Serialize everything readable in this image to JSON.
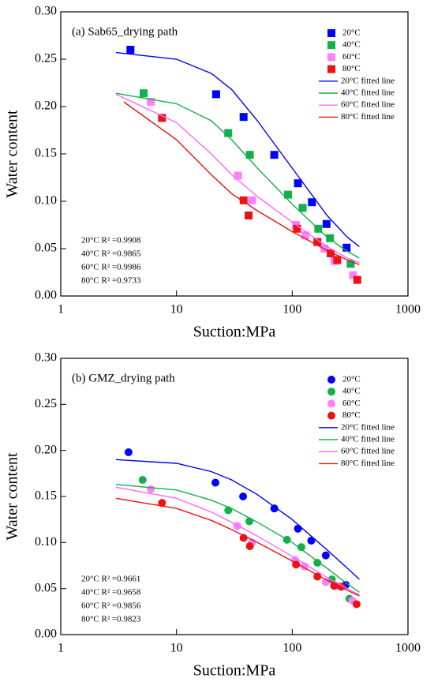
{
  "chart_data": [
    {
      "type": "scatter",
      "title": "(a) Sab65_drying path",
      "xlabel": "Suction:MPa",
      "ylabel": "Water content",
      "xscale": "log",
      "xlim": [
        1,
        1000
      ],
      "xticks": [
        1,
        10,
        100,
        1000
      ],
      "ylim": [
        0,
        0.3
      ],
      "yticks": [
        {
          "value": 0,
          "label": "0.00"
        },
        {
          "value": 0.05,
          "label": "0.05"
        },
        {
          "value": 0.1,
          "label": "0.10"
        },
        {
          "value": 0.15,
          "label": "0.15"
        },
        {
          "value": 0.2,
          "label": "0.20"
        },
        {
          "value": 0.25,
          "label": "0.25"
        },
        {
          "value": 0.3,
          "label": "0.30"
        }
      ],
      "legend": "upper right",
      "series": [
        {
          "name": "20°C",
          "mode": "markers",
          "marker": "square",
          "color": "#0000ff",
          "x": [
            4,
            22,
            38,
            70,
            112,
            148,
            198,
            295
          ],
          "values": [
            0.26,
            0.213,
            0.189,
            0.149,
            0.119,
            0.099,
            0.076,
            0.051
          ]
        },
        {
          "name": "40°C",
          "mode": "markers",
          "marker": "square",
          "color": "#12b04a",
          "x": [
            5.2,
            28,
            43,
            92,
            123,
            168,
            212,
            320
          ],
          "values": [
            0.214,
            0.172,
            0.149,
            0.107,
            0.093,
            0.071,
            0.061,
            0.034
          ]
        },
        {
          "name": "60°C",
          "mode": "markers",
          "marker": "square",
          "color": "#ff80ff",
          "x": [
            6,
            34,
            45,
            108,
            130,
            190,
            232,
            335
          ],
          "values": [
            0.205,
            0.127,
            0.101,
            0.075,
            0.064,
            0.05,
            0.037,
            0.022
          ]
        },
        {
          "name": "80°C",
          "mode": "markers",
          "marker": "square",
          "color": "#ee1111",
          "x": [
            7.5,
            38,
            42,
            110,
            165,
            215,
            245,
            365
          ],
          "values": [
            0.188,
            0.101,
            0.085,
            0.071,
            0.057,
            0.045,
            0.038,
            0.017
          ]
        },
        {
          "name": "20°C fitted line",
          "mode": "line",
          "color": "#0000ff",
          "x": [
            3,
            10,
            20,
            30,
            50,
            100,
            200,
            300,
            380
          ],
          "values": [
            0.257,
            0.25,
            0.235,
            0.218,
            0.185,
            0.135,
            0.085,
            0.062,
            0.052
          ]
        },
        {
          "name": "40°C fitted line",
          "mode": "line",
          "color": "#12b04a",
          "x": [
            3,
            10,
            20,
            30,
            50,
            100,
            200,
            300,
            380
          ],
          "values": [
            0.214,
            0.203,
            0.185,
            0.165,
            0.135,
            0.097,
            0.062,
            0.047,
            0.04
          ]
        },
        {
          "name": "60°C fitted line",
          "mode": "line",
          "color": "#ff66ff",
          "x": [
            3,
            10,
            20,
            30,
            50,
            100,
            200,
            300,
            380
          ],
          "values": [
            0.213,
            0.183,
            0.15,
            0.128,
            0.105,
            0.078,
            0.052,
            0.04,
            0.035
          ]
        },
        {
          "name": "80°C fitted line",
          "mode": "line",
          "color": "#ee1111",
          "x": [
            3.5,
            10,
            20,
            30,
            50,
            100,
            200,
            300,
            380
          ],
          "values": [
            0.205,
            0.165,
            0.128,
            0.108,
            0.09,
            0.068,
            0.048,
            0.038,
            0.033
          ]
        }
      ],
      "annotations": [
        "20°C R² =0.9908",
        "40°C R² =0.9865",
        "60°C R² =0.9986",
        "80°C R² =0.9733"
      ]
    },
    {
      "type": "scatter",
      "title": "(b) GMZ_drying path",
      "xlabel": "Suction:MPa",
      "ylabel": "Water content",
      "xscale": "log",
      "xlim": [
        1,
        1000
      ],
      "xticks": [
        1,
        10,
        100,
        1000
      ],
      "ylim": [
        0,
        0.3
      ],
      "yticks": [
        {
          "value": 0,
          "label": "0.00"
        },
        {
          "value": 0.05,
          "label": "0.05"
        },
        {
          "value": 0.1,
          "label": "0.10"
        },
        {
          "value": 0.15,
          "label": "0.15"
        },
        {
          "value": 0.2,
          "label": "0.20"
        },
        {
          "value": 0.25,
          "label": "0.25"
        },
        {
          "value": 0.3,
          "label": "0.30"
        }
      ],
      "legend": "upper right",
      "series": [
        {
          "name": "20°C",
          "mode": "markers",
          "marker": "circle",
          "color": "#0000ff",
          "x": [
            3.85,
            21.7,
            37.6,
            70,
            112,
            146,
            195,
            290
          ],
          "values": [
            0.198,
            0.165,
            0.15,
            0.137,
            0.115,
            0.102,
            0.086,
            0.054
          ]
        },
        {
          "name": "40°C",
          "mode": "markers",
          "marker": "circle",
          "color": "#12b04a",
          "x": [
            5.1,
            28,
            42.6,
            90,
            120,
            165,
            220,
            312
          ],
          "values": [
            0.168,
            0.135,
            0.123,
            0.103,
            0.095,
            0.078,
            0.06,
            0.039
          ]
        },
        {
          "name": "60°C",
          "mode": "markers",
          "marker": "circle",
          "color": "#ff80ff",
          "x": [
            6,
            33.5,
            45,
            106,
            128,
            195,
            243,
            330
          ],
          "values": [
            0.158,
            0.118,
            0.1,
            0.081,
            0.074,
            0.057,
            0.053,
            0.037
          ]
        },
        {
          "name": "80°C",
          "mode": "markers",
          "marker": "circle",
          "color": "#ee1111",
          "x": [
            7.5,
            38,
            43,
            108,
            165,
            230,
            265,
            360
          ],
          "values": [
            0.143,
            0.105,
            0.096,
            0.076,
            0.063,
            0.053,
            0.052,
            0.033
          ]
        },
        {
          "name": "20°C fitted line",
          "mode": "line",
          "color": "#0000ff",
          "x": [
            3,
            10,
            20,
            30,
            50,
            100,
            200,
            300,
            380
          ],
          "values": [
            0.19,
            0.186,
            0.177,
            0.168,
            0.152,
            0.125,
            0.092,
            0.072,
            0.06
          ]
        },
        {
          "name": "40°C fitted line",
          "mode": "line",
          "color": "#12b04a",
          "x": [
            3,
            10,
            20,
            30,
            50,
            100,
            200,
            300,
            380
          ],
          "values": [
            0.163,
            0.157,
            0.146,
            0.137,
            0.122,
            0.1,
            0.072,
            0.055,
            0.046
          ]
        },
        {
          "name": "60°C fitted line",
          "mode": "line",
          "color": "#ff66ff",
          "x": [
            3,
            10,
            20,
            30,
            50,
            100,
            200,
            300,
            380
          ],
          "values": [
            0.16,
            0.148,
            0.133,
            0.122,
            0.107,
            0.085,
            0.062,
            0.05,
            0.043
          ]
        },
        {
          "name": "80°C fitted line",
          "mode": "line",
          "color": "#ee1111",
          "x": [
            3,
            10,
            20,
            30,
            50,
            100,
            200,
            300,
            380
          ],
          "values": [
            0.148,
            0.137,
            0.124,
            0.114,
            0.1,
            0.08,
            0.059,
            0.048,
            0.042
          ]
        }
      ],
      "annotations": [
        "20°C R² =0.9661",
        "40°C R² =0.9658",
        "60°C R² =0.9856",
        "80°C R² =0.9823"
      ]
    }
  ]
}
